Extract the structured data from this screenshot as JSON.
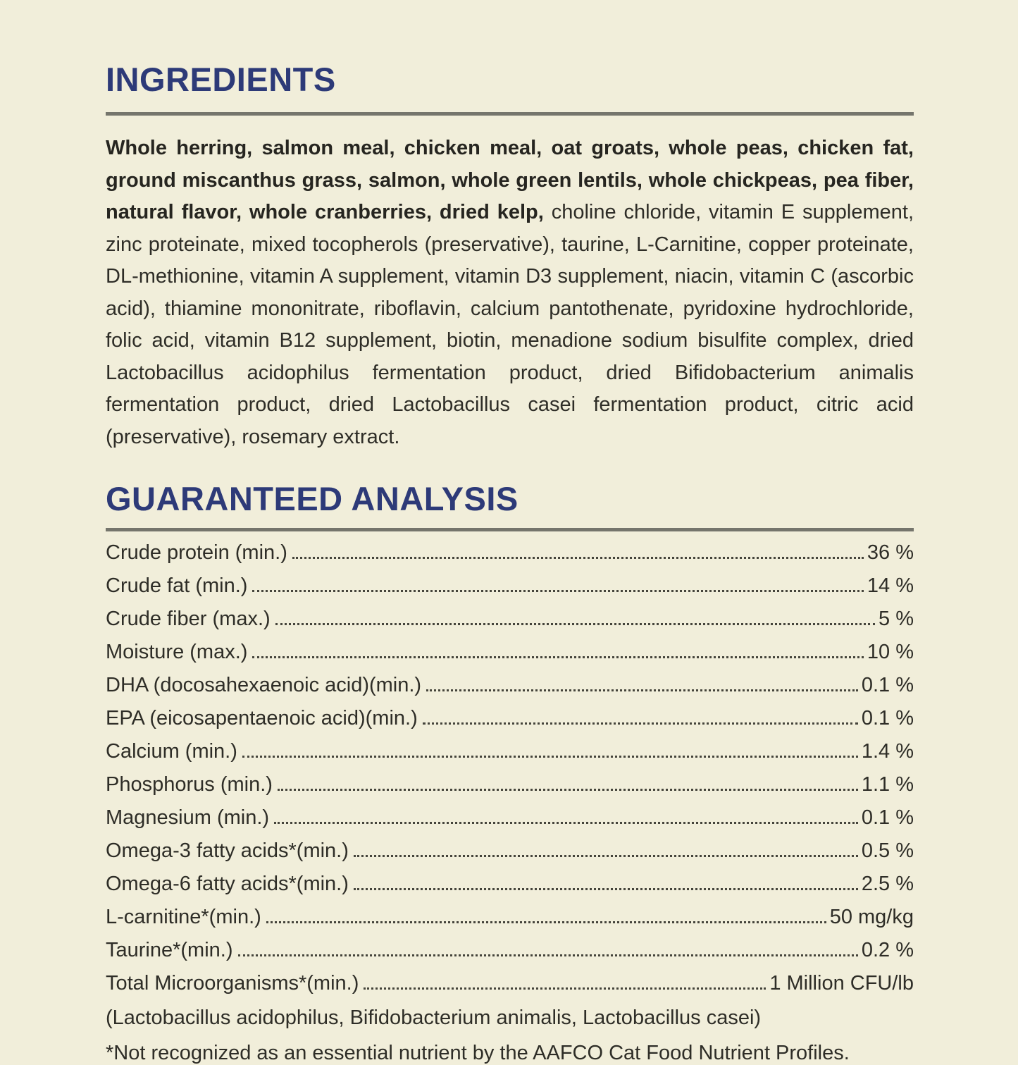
{
  "page": {
    "background_color": "#f1eeda",
    "heading_color": "#2d3a78",
    "rule_color": "#75756c",
    "text_color": "#2e2d27"
  },
  "ingredients": {
    "heading": "INGREDIENTS",
    "bold_text": "Whole herring, salmon meal, chicken meal, oat groats, whole peas, chicken fat, ground miscanthus grass, salmon, whole green lentils, whole chickpeas, pea fiber, natural flavor, whole cranberries, dried kelp,",
    "regular_text": " choline chloride, vitamin E supplement, zinc proteinate, mixed tocopherols (preservative), taurine, L-Carnitine, copper proteinate, DL-methionine, vitamin A supplement, vitamin D3 supplement, niacin, vitamin C (ascorbic acid), thiamine mononitrate, riboflavin, calcium pantothenate, pyridoxine hydrochloride, folic acid, vitamin B12 supplement, biotin, menadione sodium bisulfite complex, dried Lactobacillus acidophilus fermentation product, dried Bifidobacterium animalis fermentation product, dried Lactobacillus casei fermentation product, citric acid (preservative), rosemary extract."
  },
  "analysis": {
    "heading": "GUARANTEED ANALYSIS",
    "rows": [
      {
        "label": "Crude protein (min.)",
        "value": "36 %"
      },
      {
        "label": "Crude fat (min.)",
        "value": "14 %"
      },
      {
        "label": "Crude fiber (max.)",
        "value": "5 %"
      },
      {
        "label": "Moisture (max.)",
        "value": "10 %"
      },
      {
        "label": "DHA (docosahexaenoic acid)(min.)",
        "value": "0.1 %"
      },
      {
        "label": "EPA (eicosapentaenoic acid)(min.)",
        "value": "0.1 %"
      },
      {
        "label": "Calcium (min.)",
        "value": "1.4 %"
      },
      {
        "label": "Phosphorus (min.)",
        "value": "1.1 %"
      },
      {
        "label": "Magnesium (min.)",
        "value": "0.1 %"
      },
      {
        "label": "Omega-3 fatty acids*(min.)",
        "value": "0.5 %"
      },
      {
        "label": "Omega-6 fatty acids*(min.)",
        "value": "2.5 %"
      },
      {
        "label": "L-carnitine*(min.)",
        "value": "50 mg/kg"
      },
      {
        "label": "Taurine*(min.)",
        "value": "0.2 %"
      },
      {
        "label": "Total Microorganisms*(min.)",
        "value": "1 Million CFU/lb"
      }
    ],
    "microorganisms_note": "(Lactobacillus acidophilus, Bifidobacterium animalis, Lactobacillus casei)",
    "footnote": "*Not recognized as an essential nutrient by the AAFCO Cat Food Nutrient Profiles."
  }
}
